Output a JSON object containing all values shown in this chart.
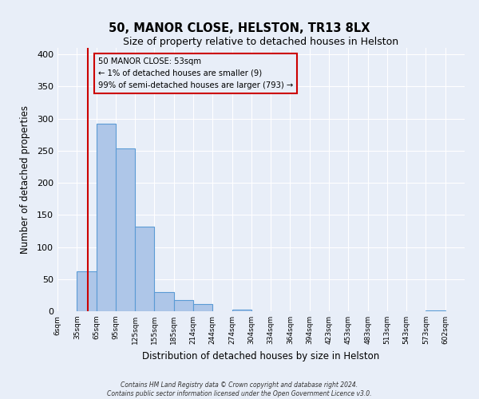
{
  "title": "50, MANOR CLOSE, HELSTON, TR13 8LX",
  "subtitle": "Size of property relative to detached houses in Helston",
  "xlabel": "Distribution of detached houses by size in Helston",
  "ylabel": "Number of detached properties",
  "bin_labels": [
    "6sqm",
    "35sqm",
    "65sqm",
    "95sqm",
    "125sqm",
    "155sqm",
    "185sqm",
    "214sqm",
    "244sqm",
    "274sqm",
    "304sqm",
    "334sqm",
    "364sqm",
    "394sqm",
    "423sqm",
    "453sqm",
    "483sqm",
    "513sqm",
    "543sqm",
    "573sqm",
    "602sqm"
  ],
  "num_bins": 21,
  "bar_heights": [
    0,
    62,
    292,
    254,
    132,
    30,
    18,
    11,
    0,
    3,
    0,
    0,
    0,
    0,
    0,
    0,
    0,
    0,
    0,
    1,
    0
  ],
  "bar_color": "#aec6e8",
  "bar_edge_color": "#5b9bd5",
  "marker_bin": 1.55,
  "marker_color": "#cc0000",
  "annotation_text": "50 MANOR CLOSE: 53sqm\n← 1% of detached houses are smaller (9)\n99% of semi-detached houses are larger (793) →",
  "annotation_box_edge": "#cc0000",
  "ylim": [
    0,
    410
  ],
  "yticks": [
    0,
    50,
    100,
    150,
    200,
    250,
    300,
    350,
    400
  ],
  "background_color": "#e8eef8",
  "footnote1": "Contains HM Land Registry data © Crown copyright and database right 2024.",
  "footnote2": "Contains public sector information licensed under the Open Government Licence v3.0."
}
